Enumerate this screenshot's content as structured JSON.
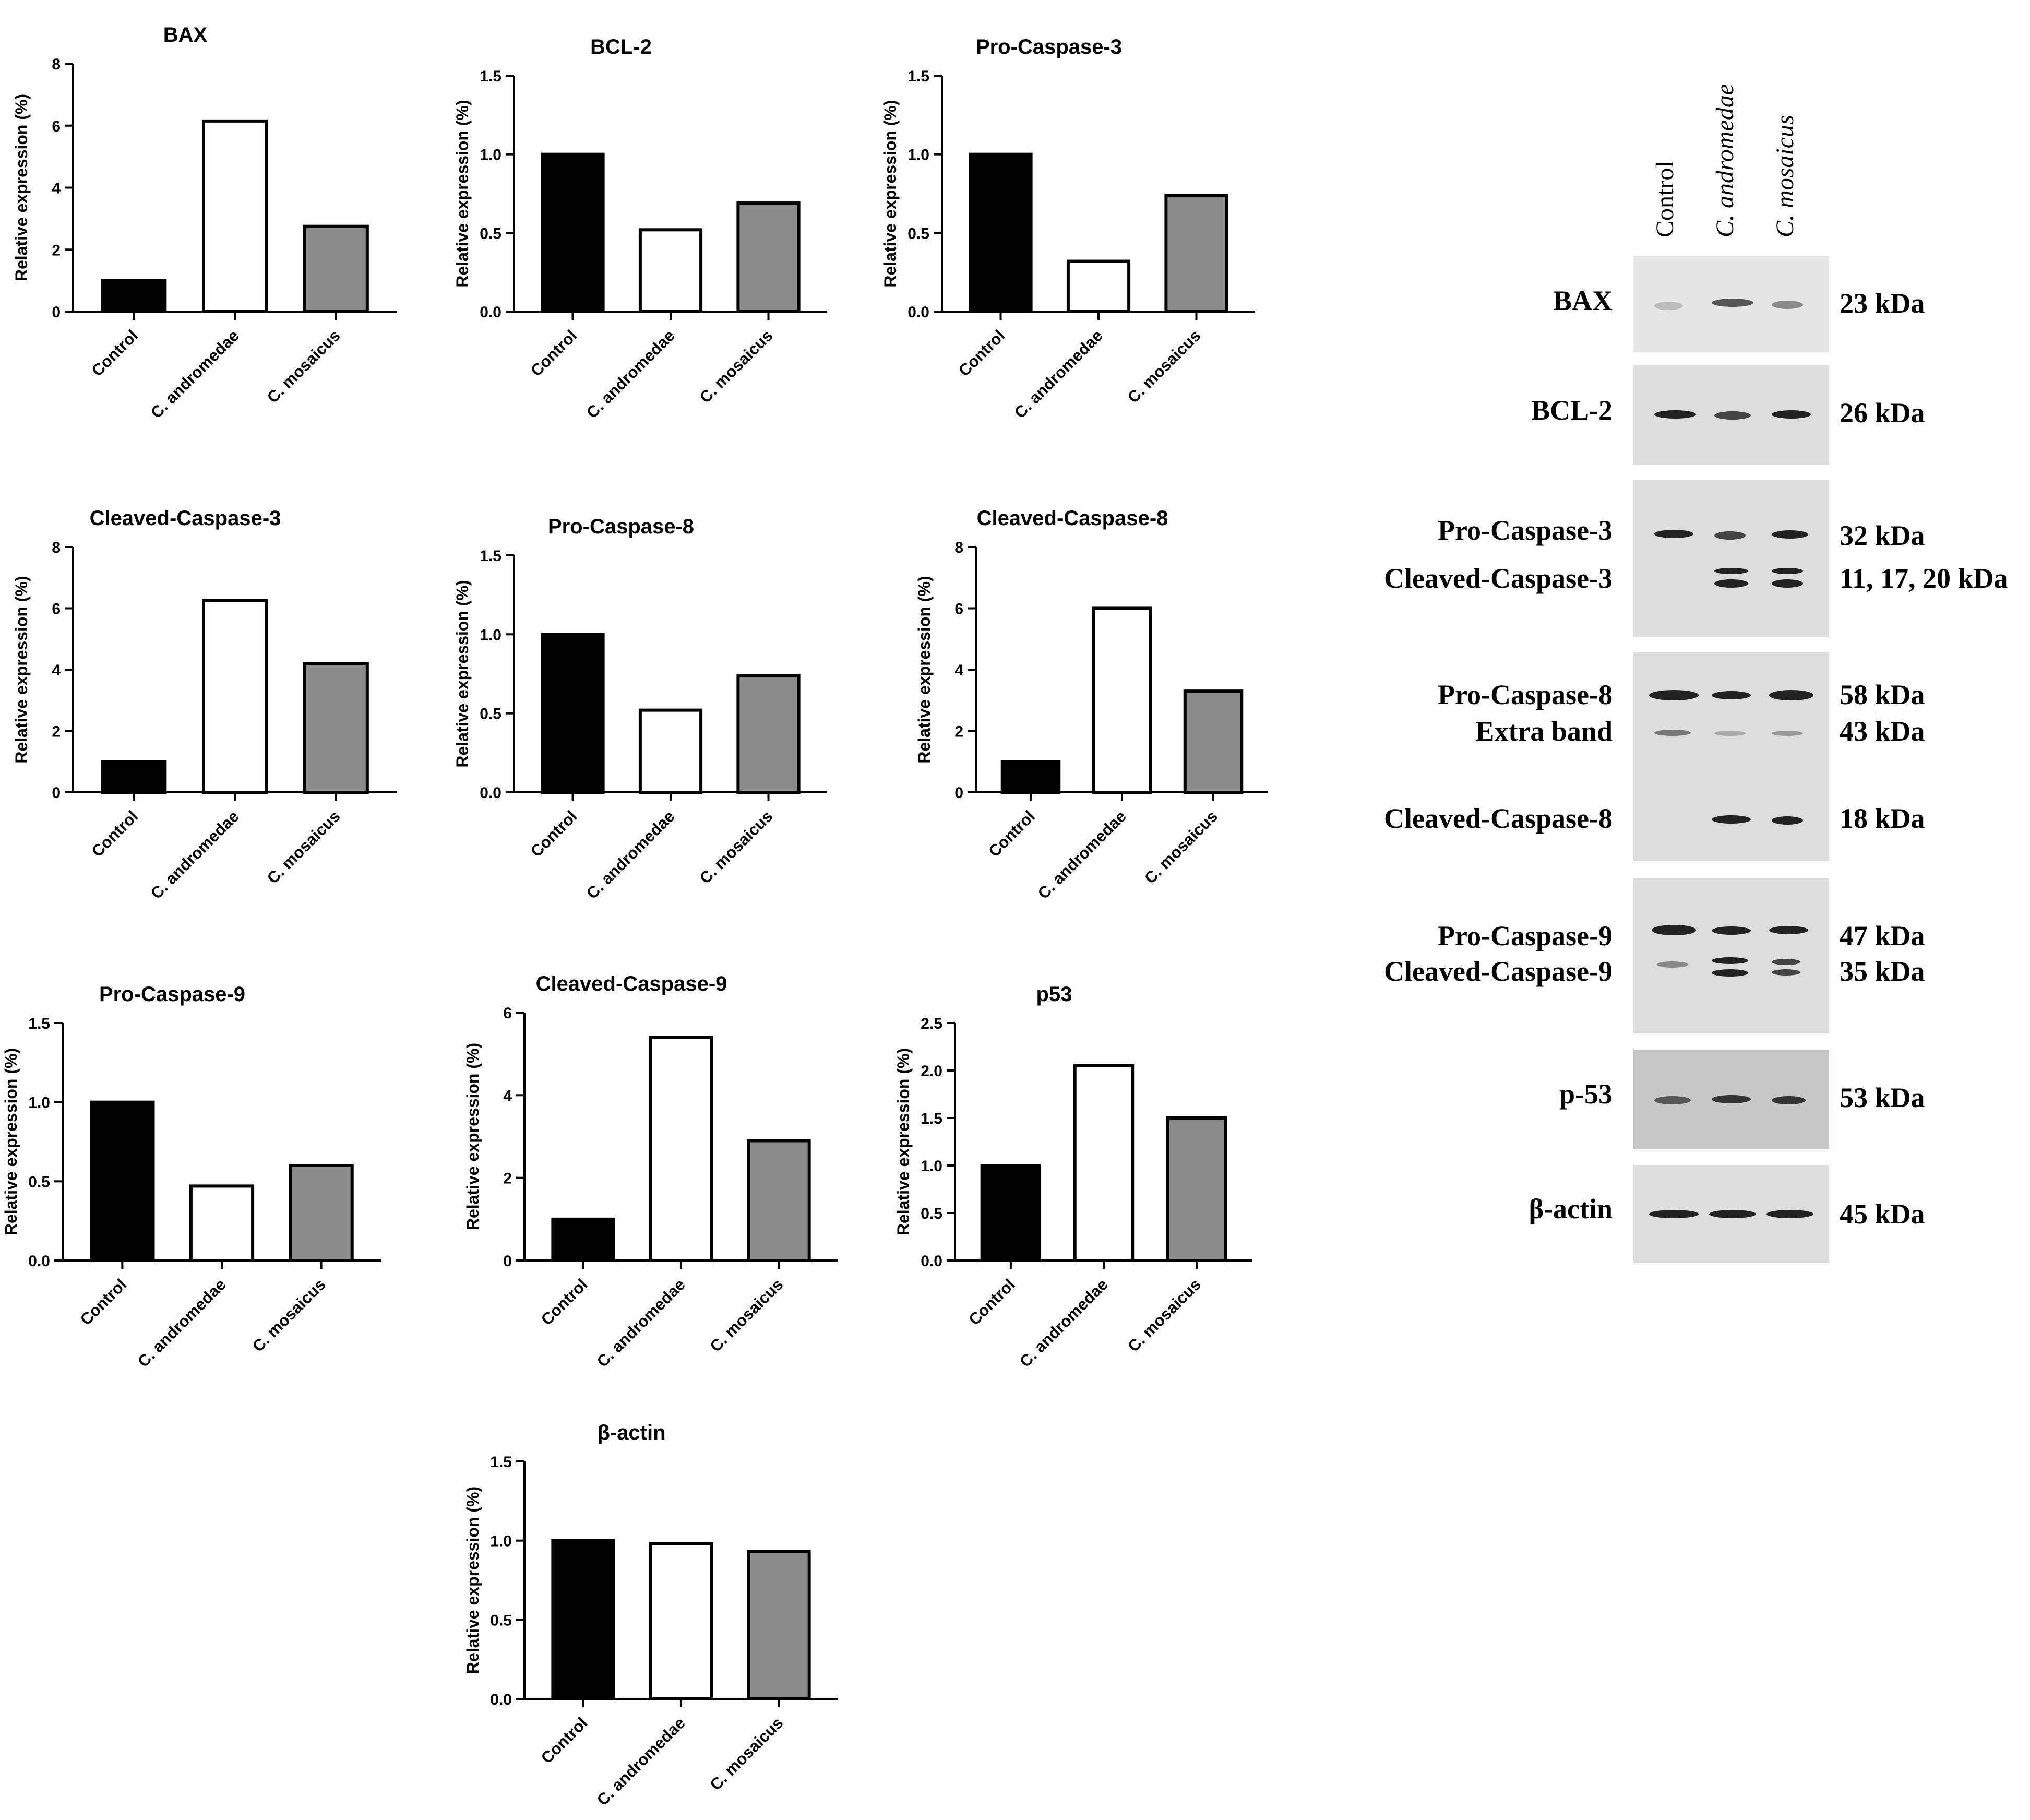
{
  "colors": {
    "control": "#000000",
    "c_andromedae": "#ffffff",
    "c_mosaicus": "#8c8c8c",
    "axis": "#000000"
  },
  "chart_data": [
    {
      "type": "bar",
      "title": "BAX",
      "categories": [
        "Control",
        "C. andromedae",
        "C. mosaicus"
      ],
      "values": [
        1.0,
        6.15,
        2.75
      ],
      "ylabel": "Relative expression (%)",
      "ylim": [
        0,
        8
      ],
      "yticks": [
        "0",
        "2",
        "4",
        "6",
        "8"
      ],
      "ytick_values": [
        0,
        2,
        4,
        6,
        8
      ]
    },
    {
      "type": "bar",
      "title": "BCL-2",
      "categories": [
        "Control",
        "C. andromedae",
        "C. mosaicus"
      ],
      "values": [
        1.0,
        0.52,
        0.69
      ],
      "ylabel": "Relative expression (%)",
      "ylim": [
        0,
        1.5
      ],
      "yticks": [
        "0.0",
        "0.5",
        "1.0",
        "1.5"
      ],
      "ytick_values": [
        0,
        0.5,
        1.0,
        1.5
      ]
    },
    {
      "type": "bar",
      "title": "Pro-Caspase-3",
      "categories": [
        "Control",
        "C. andromedae",
        "C. mosaicus"
      ],
      "values": [
        1.0,
        0.32,
        0.74
      ],
      "ylabel": "Relative expression (%)",
      "ylim": [
        0,
        1.5
      ],
      "yticks": [
        "0.0",
        "0.5",
        "1.0",
        "1.5"
      ],
      "ytick_values": [
        0,
        0.5,
        1.0,
        1.5
      ]
    },
    {
      "type": "bar",
      "title": "Cleaved-Caspase-3",
      "categories": [
        "Control",
        "C. andromedae",
        "C. mosaicus"
      ],
      "values": [
        1.0,
        6.25,
        4.2
      ],
      "ylabel": "Relative expression (%)",
      "ylim": [
        0,
        8
      ],
      "yticks": [
        "0",
        "2",
        "4",
        "6",
        "8"
      ],
      "ytick_values": [
        0,
        2,
        4,
        6,
        8
      ]
    },
    {
      "type": "bar",
      "title": "Pro-Caspase-8",
      "categories": [
        "Control",
        "C. andromedae",
        "C. mosaicus"
      ],
      "values": [
        1.0,
        0.52,
        0.74
      ],
      "ylabel": "Relative expression (%)",
      "ylim": [
        0,
        1.5
      ],
      "yticks": [
        "0.0",
        "0.5",
        "1.0",
        "1.5"
      ],
      "ytick_values": [
        0,
        0.5,
        1.0,
        1.5
      ]
    },
    {
      "type": "bar",
      "title": "Cleaved-Caspase-8",
      "categories": [
        "Control",
        "C. andromedae",
        "C. mosaicus"
      ],
      "values": [
        1.0,
        6.0,
        3.3
      ],
      "ylabel": "Relative expression (%)",
      "ylim": [
        0,
        8
      ],
      "yticks": [
        "0",
        "2",
        "4",
        "6",
        "8"
      ],
      "ytick_values": [
        0,
        2,
        4,
        6,
        8
      ]
    },
    {
      "type": "bar",
      "title": "Pro-Caspase-9",
      "categories": [
        "Control",
        "C. andromedae",
        "C. mosaicus"
      ],
      "values": [
        1.0,
        0.47,
        0.6
      ],
      "ylabel": "Relative expression (%)",
      "ylim": [
        0,
        1.5
      ],
      "yticks": [
        "0.0",
        "0.5",
        "1.0",
        "1.5"
      ],
      "ytick_values": [
        0,
        0.5,
        1.0,
        1.5
      ]
    },
    {
      "type": "bar",
      "title": "Cleaved-Caspase-9",
      "categories": [
        "Control",
        "C. andromedae",
        "C. mosaicus"
      ],
      "values": [
        1.0,
        5.4,
        2.9
      ],
      "ylabel": "Relative expression (%)",
      "ylim": [
        0,
        6
      ],
      "yticks": [
        "0",
        "2",
        "4",
        "6"
      ],
      "ytick_values": [
        0,
        2,
        4,
        6
      ]
    },
    {
      "type": "bar",
      "title": "p53",
      "categories": [
        "Control",
        "C. andromedae",
        "C. mosaicus"
      ],
      "values": [
        1.0,
        2.05,
        1.5
      ],
      "ylabel": "Relative expression (%)",
      "ylim": [
        0,
        2.5
      ],
      "yticks": [
        "0.0",
        "0.5",
        "1.0",
        "1.5",
        "2.0",
        "2.5"
      ],
      "ytick_values": [
        0,
        0.5,
        1.0,
        1.5,
        2.0,
        2.5
      ]
    },
    {
      "type": "bar",
      "title": "β-actin",
      "categories": [
        "Control",
        "C. andromedae",
        "C. mosaicus"
      ],
      "values": [
        1.0,
        0.98,
        0.93
      ],
      "ylabel": "Relative expression (%)",
      "ylim": [
        0,
        1.5
      ],
      "yticks": [
        "0.0",
        "0.5",
        "1.0",
        "1.5"
      ],
      "ytick_values": [
        0,
        0.5,
        1.0,
        1.5
      ]
    }
  ],
  "blot": {
    "lanes": [
      "Control",
      "C. andromedae",
      "C. mosaicus"
    ],
    "panels": [
      {
        "proteins": [
          "BAX"
        ],
        "sizes": [
          "23 kDa"
        ]
      },
      {
        "proteins": [
          "BCL-2"
        ],
        "sizes": [
          "26 kDa"
        ]
      },
      {
        "proteins": [
          "Pro-Caspase-3",
          "Cleaved-Caspase-3"
        ],
        "sizes": [
          "32 kDa",
          "11, 17, 20 kDa"
        ]
      },
      {
        "proteins": [
          "Pro-Caspase-8",
          "Extra band",
          "Cleaved-Caspase-8"
        ],
        "sizes": [
          "58 kDa",
          "43 kDa",
          "18 kDa"
        ]
      },
      {
        "proteins": [
          "Pro-Caspase-9",
          "Cleaved-Caspase-9"
        ],
        "sizes": [
          "47 kDa",
          "35 kDa"
        ]
      },
      {
        "proteins": [
          "p-53"
        ],
        "sizes": [
          "53 kDa"
        ]
      },
      {
        "proteins": [
          "β-actin"
        ],
        "sizes": [
          "45 kDa"
        ]
      }
    ]
  }
}
